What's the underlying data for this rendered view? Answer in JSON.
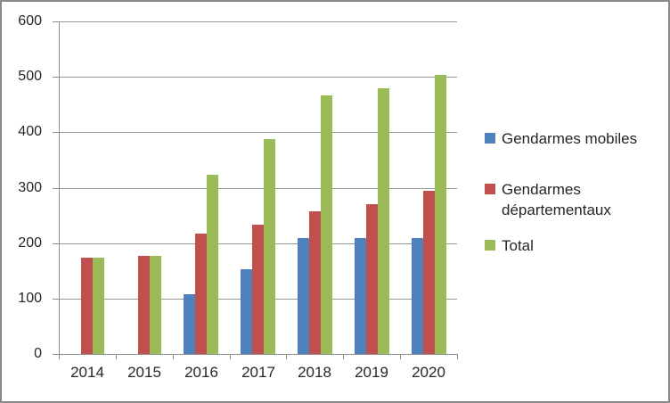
{
  "chart": {
    "background": "#ffffff",
    "border_color": "#8a8a8a",
    "grid_color": "#979797",
    "axis_color": "#8c8c8c",
    "text_color": "#262626"
  },
  "chart_data": {
    "type": "bar",
    "title": "",
    "xlabel": "",
    "ylabel": "",
    "categories": [
      "2014",
      "2015",
      "2016",
      "2017",
      "2018",
      "2019",
      "2020"
    ],
    "series": [
      {
        "name": "Gendarmes mobiles",
        "color": "#4F81BD",
        "values": [
          0,
          0,
          107,
          153,
          209,
          209,
          209
        ]
      },
      {
        "name": "Gendarmes départementaux",
        "color": "#C0504D",
        "values": [
          174,
          177,
          217,
          234,
          257,
          271,
          295
        ]
      },
      {
        "name": "Total",
        "color": "#9BBB59",
        "values": [
          174,
          177,
          324,
          387,
          466,
          480,
          504
        ]
      }
    ],
    "ylim": [
      0,
      600
    ],
    "ytick_step": 100,
    "yticks": [
      "0",
      "100",
      "200",
      "300",
      "400",
      "500",
      "600"
    ],
    "grid": true,
    "legend_position": "right"
  }
}
